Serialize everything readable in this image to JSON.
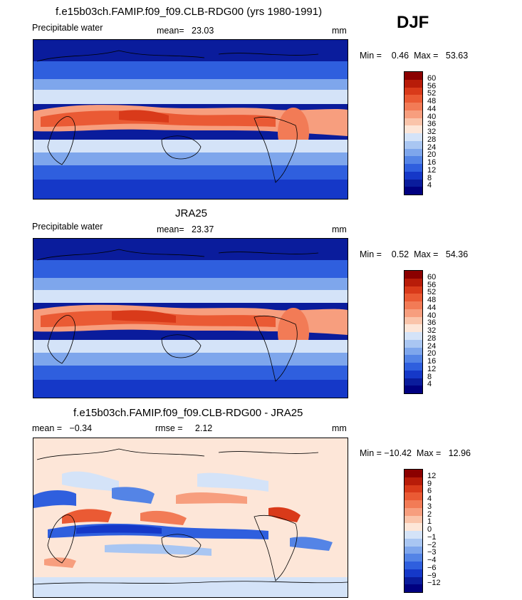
{
  "season": "DJF",
  "panels": [
    {
      "title": "f.e15b03ch.FAMIP.f09_f09.CLB-RDG00 (yrs 1980-1991)",
      "left": "Precipitable water",
      "center": "mean=   23.03",
      "units": "mm",
      "minmax": "Min =    0.46  Max =   53.63",
      "levels": [
        "60",
        "56",
        "52",
        "48",
        "44",
        "40",
        "36",
        "32",
        "28",
        "24",
        "20",
        "16",
        "12",
        "8",
        "4"
      ],
      "colors": [
        "#8b0000",
        "#b81c09",
        "#d93a1a",
        "#ea5a34",
        "#f27b56",
        "#f79e7e",
        "#fac4aa",
        "#fde6d8",
        "#d4e3f8",
        "#a9c6f2",
        "#7ea6ec",
        "#5484e6",
        "#2f5fde",
        "#1538c8",
        "#0a1c9c",
        "#000080"
      ]
    },
    {
      "title": "JRA25",
      "left": "Precipitable water",
      "center": "mean=   23.37",
      "units": "mm",
      "minmax": "Min =    0.52  Max =   54.36",
      "levels": [
        "60",
        "56",
        "52",
        "48",
        "44",
        "40",
        "36",
        "32",
        "28",
        "24",
        "20",
        "16",
        "12",
        "8",
        "4"
      ],
      "colors": [
        "#8b0000",
        "#b81c09",
        "#d93a1a",
        "#ea5a34",
        "#f27b56",
        "#f79e7e",
        "#fac4aa",
        "#fde6d8",
        "#d4e3f8",
        "#a9c6f2",
        "#7ea6ec",
        "#5484e6",
        "#2f5fde",
        "#1538c8",
        "#0a1c9c",
        "#000080"
      ]
    },
    {
      "title": "f.e15b03ch.FAMIP.f09_f09.CLB-RDG00 - JRA25",
      "left": "mean =   −0.34",
      "center": "rmse =     2.12",
      "units": "mm",
      "minmax": "Min = −10.42  Max =   12.96",
      "levels": [
        "12",
        "9",
        "6",
        "4",
        "3",
        "2",
        "1",
        "0",
        "−1",
        "−2",
        "−3",
        "−4",
        "−6",
        "−9",
        "−12"
      ],
      "colors": [
        "#8b0000",
        "#b81c09",
        "#d93a1a",
        "#ea5a34",
        "#f27b56",
        "#f79e7e",
        "#fac4aa",
        "#fde6d8",
        "#d4e3f8",
        "#a9c6f2",
        "#7ea6ec",
        "#5484e6",
        "#2f5fde",
        "#1538c8",
        "#0a1c9c",
        "#000080"
      ]
    }
  ],
  "chart_data": [
    {
      "type": "heatmap",
      "title": "f.e15b03ch.FAMIP.f09_f09.CLB-RDG00 (yrs 1980-1991)",
      "variable": "Precipitable water",
      "units": "mm",
      "mean": 23.03,
      "min": 0.46,
      "max": 53.63,
      "levels": [
        4,
        8,
        12,
        16,
        20,
        24,
        28,
        32,
        36,
        40,
        44,
        48,
        52,
        56,
        60
      ]
    },
    {
      "type": "heatmap",
      "title": "JRA25",
      "variable": "Precipitable water",
      "units": "mm",
      "mean": 23.37,
      "min": 0.52,
      "max": 54.36,
      "levels": [
        4,
        8,
        12,
        16,
        20,
        24,
        28,
        32,
        36,
        40,
        44,
        48,
        52,
        56,
        60
      ]
    },
    {
      "type": "heatmap",
      "title": "f.e15b03ch.FAMIP.f09_f09.CLB-RDG00 - JRA25",
      "units": "mm",
      "mean": -0.34,
      "rmse": 2.12,
      "min": -10.42,
      "max": 12.96,
      "levels": [
        -12,
        -9,
        -6,
        -4,
        -3,
        -2,
        -1,
        0,
        1,
        2,
        3,
        4,
        6,
        9,
        12
      ]
    }
  ]
}
